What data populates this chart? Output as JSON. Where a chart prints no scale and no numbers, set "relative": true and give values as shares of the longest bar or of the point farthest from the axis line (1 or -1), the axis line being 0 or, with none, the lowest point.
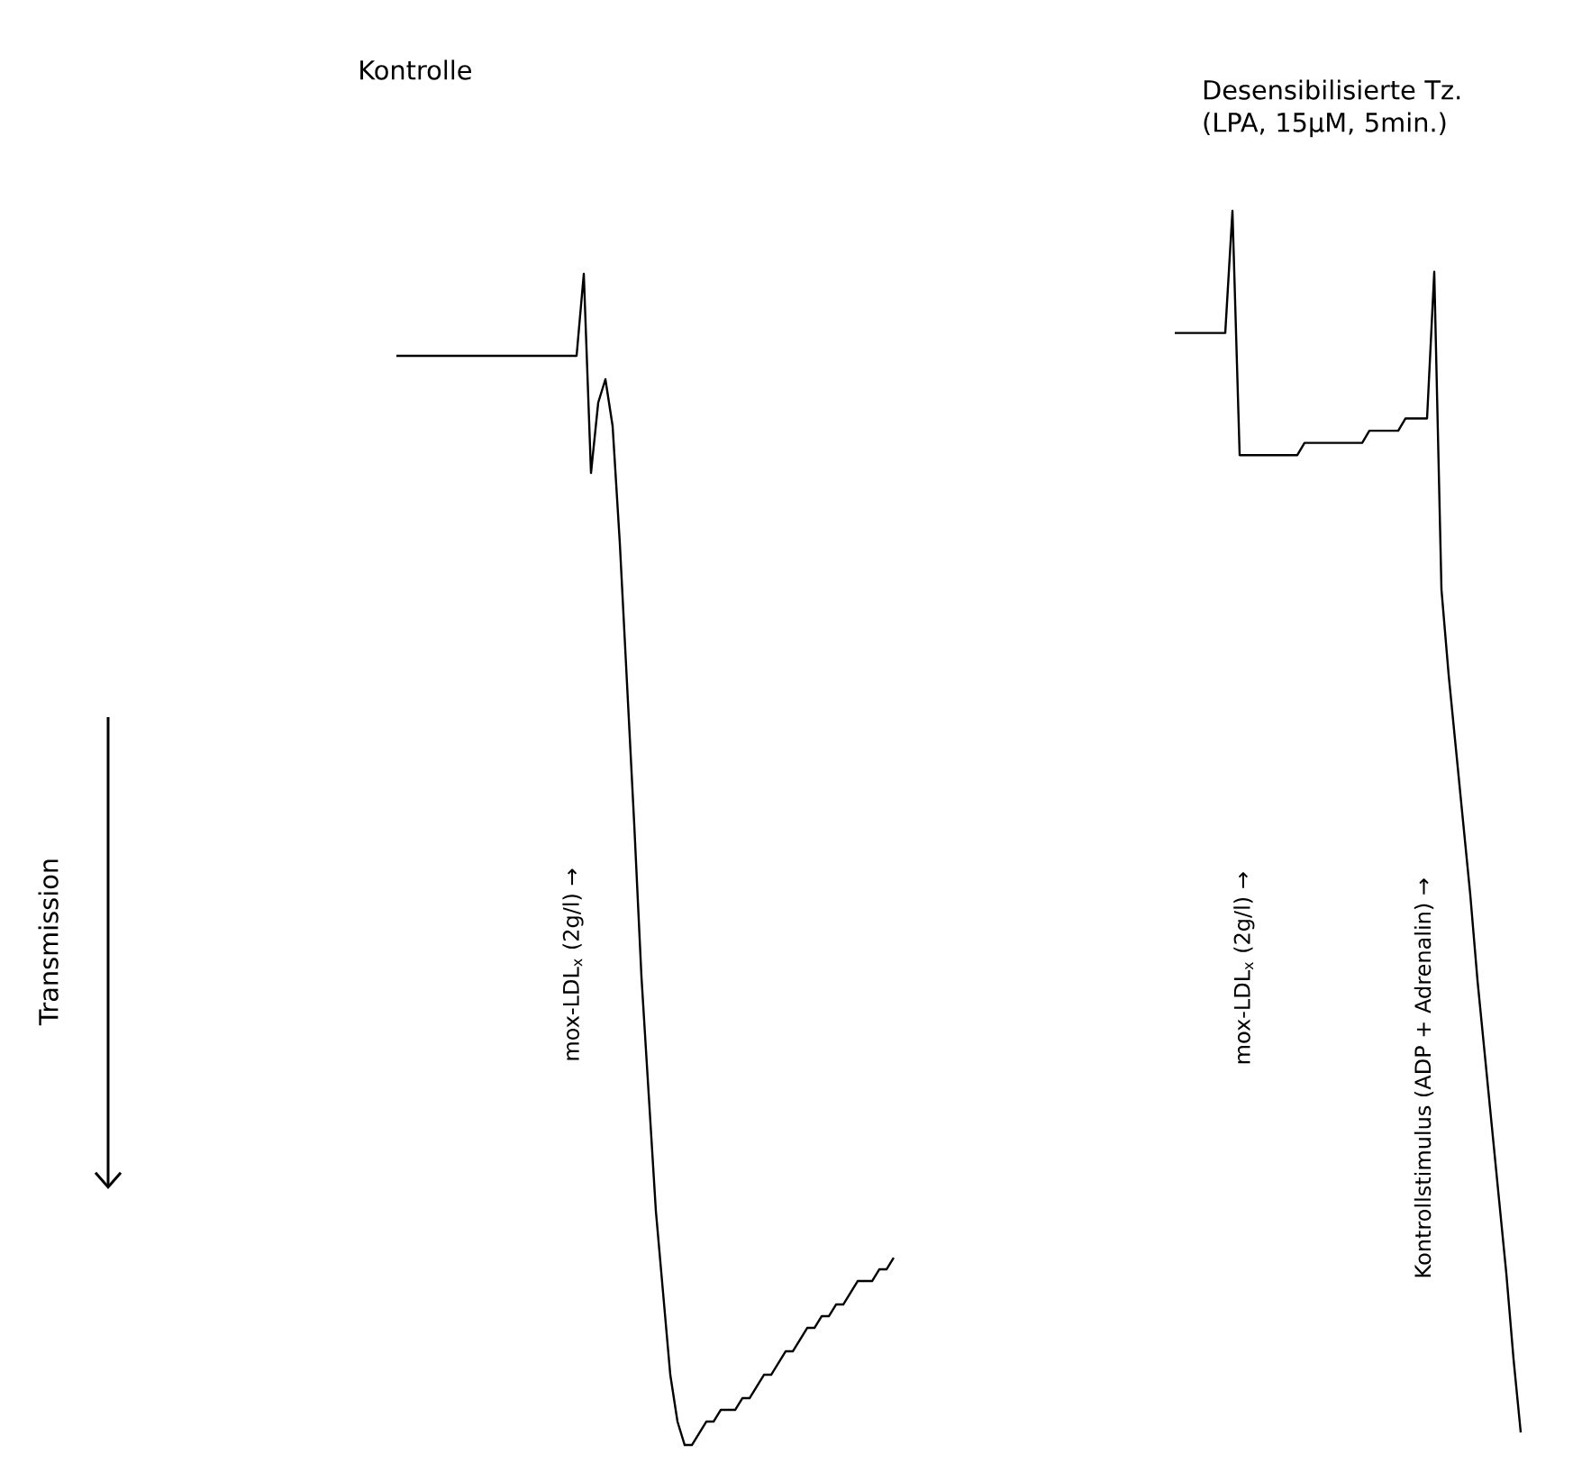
{
  "chart_data": [
    {
      "type": "line",
      "title": "Kontrolle",
      "ylabel": "Transmission",
      "relative": true,
      "categories": [
        null,
        null,
        null,
        null,
        null,
        null,
        null,
        null,
        null,
        null,
        null,
        null,
        null,
        null,
        null,
        null,
        null,
        null,
        null,
        null,
        null,
        null,
        null,
        null,
        null,
        null,
        null,
        null,
        null,
        null,
        null,
        null,
        null,
        null,
        null,
        null,
        null,
        null,
        null,
        null,
        null,
        null,
        null,
        null,
        null,
        null,
        null,
        null,
        null,
        null,
        null,
        null,
        null,
        null,
        null,
        null,
        null,
        null,
        null,
        null,
        null,
        null,
        null,
        null,
        null,
        null,
        null,
        null,
        null,
        null
      ],
      "series": [
        {
          "color": "#000000",
          "values": [
            0.93,
            0.93,
            0.93,
            0.93,
            0.93,
            0.93,
            0.93,
            0.93,
            0.93,
            0.93,
            0.93,
            0.93,
            0.93,
            0.93,
            0.93,
            0.93,
            0.93,
            0.93,
            0.93,
            0.93,
            0.93,
            0.93,
            0.93,
            0.93,
            0.93,
            0.93,
            1.0,
            0.83,
            0.89,
            0.91,
            0.87,
            0.77,
            0.65,
            0.53,
            0.4,
            0.3,
            0.2,
            0.13,
            0.06,
            0.02,
            0.0,
            0.0,
            0.01,
            0.02,
            0.02,
            0.03,
            0.03,
            0.03,
            0.04,
            0.04,
            0.05,
            0.06,
            0.06,
            0.07,
            0.08,
            0.08,
            0.09,
            0.1,
            0.1,
            0.11,
            0.11,
            0.12,
            0.12,
            0.13,
            0.14,
            0.14,
            0.14,
            0.15,
            0.15,
            0.16
          ]
        }
      ],
      "annotations": [
        "mox-LDL$_{x}$ (2g/l) →"
      ]
    },
    {
      "type": "line",
      "title": "Desensibilisierte Tz. (LPA, 15µM, 5min.)",
      "relative": true,
      "categories": [
        null,
        null,
        null,
        null,
        null,
        null,
        null,
        null,
        null,
        null,
        null,
        null,
        null,
        null,
        null,
        null,
        null,
        null,
        null,
        null,
        null,
        null,
        null,
        null,
        null,
        null,
        null,
        null,
        null,
        null,
        null,
        null,
        null,
        null,
        null,
        null,
        null,
        null,
        null,
        null,
        null,
        null,
        null,
        null,
        null,
        null,
        null,
        null,
        null
      ],
      "series": [
        {
          "color": "#000000",
          "values": [
            0.9,
            0.9,
            0.9,
            0.9,
            0.9,
            0.9,
            0.9,
            0.9,
            1.0,
            0.8,
            0.8,
            0.8,
            0.8,
            0.8,
            0.8,
            0.8,
            0.8,
            0.8,
            0.81,
            0.81,
            0.81,
            0.81,
            0.81,
            0.81,
            0.81,
            0.81,
            0.81,
            0.82,
            0.82,
            0.82,
            0.82,
            0.82,
            0.83,
            0.83,
            0.83,
            0.83,
            0.95,
            0.69,
            0.62,
            0.56,
            0.5,
            0.44,
            0.37,
            0.31,
            0.25,
            0.19,
            0.13,
            0.06,
            0.0
          ]
        }
      ],
      "annotations": [
        "mox-LDL$_{x}$ (2g/l) →",
        "Kontrollstimulus (ADP + Adrenalin) →"
      ]
    }
  ]
}
